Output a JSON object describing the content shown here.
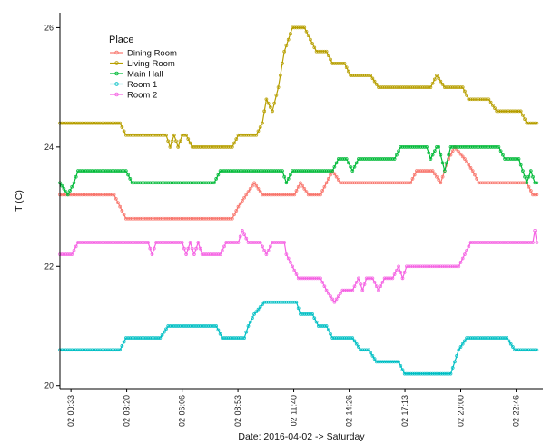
{
  "chart_data": {
    "type": "line",
    "xlabel": "Date: 2016-04-02 -> Saturday",
    "ylabel": "T (C)",
    "ylim": [
      19.95,
      26.25
    ],
    "xlim": [
      0.0,
      24.1
    ],
    "x_ticks": [
      {
        "label": "02 00:33",
        "hour": 0.55
      },
      {
        "label": "02 03:20",
        "hour": 3.333
      },
      {
        "label": "02 06:06",
        "hour": 6.1
      },
      {
        "label": "02 08:53",
        "hour": 8.883
      },
      {
        "label": "02 11:40",
        "hour": 11.667
      },
      {
        "label": "02 14:26",
        "hour": 14.433
      },
      {
        "label": "02 17:13",
        "hour": 17.217
      },
      {
        "label": "02 20:00",
        "hour": 20.0
      },
      {
        "label": "02 22:46",
        "hour": 22.767
      }
    ],
    "y_ticks": [
      20,
      22,
      24,
      26
    ],
    "grid": false,
    "legend": {
      "title": "Place",
      "position": "top-left"
    },
    "series": [
      {
        "name": "Dining Room",
        "color": "#F8766D",
        "points": [
          [
            0.0,
            23.2
          ],
          [
            2.7,
            23.2
          ],
          [
            3.0,
            23.0
          ],
          [
            3.3,
            22.8
          ],
          [
            8.6,
            22.8
          ],
          [
            8.9,
            23.0
          ],
          [
            9.3,
            23.2
          ],
          [
            9.7,
            23.4
          ],
          [
            10.1,
            23.2
          ],
          [
            11.7,
            23.2
          ],
          [
            12.0,
            23.4
          ],
          [
            12.4,
            23.2
          ],
          [
            13.0,
            23.2
          ],
          [
            13.3,
            23.4
          ],
          [
            13.6,
            23.6
          ],
          [
            14.0,
            23.4
          ],
          [
            17.5,
            23.4
          ],
          [
            17.8,
            23.6
          ],
          [
            18.6,
            23.6
          ],
          [
            19.0,
            23.4
          ],
          [
            19.4,
            23.8
          ],
          [
            19.7,
            24.0
          ],
          [
            20.2,
            23.8
          ],
          [
            20.6,
            23.6
          ],
          [
            20.9,
            23.4
          ],
          [
            23.3,
            23.4
          ],
          [
            23.6,
            23.2
          ],
          [
            23.8,
            23.2
          ]
        ]
      },
      {
        "name": "Living Room",
        "color": "#B79F00",
        "points": [
          [
            0.0,
            24.4
          ],
          [
            3.0,
            24.4
          ],
          [
            3.3,
            24.2
          ],
          [
            5.3,
            24.2
          ],
          [
            5.5,
            24.0
          ],
          [
            5.7,
            24.2
          ],
          [
            5.9,
            24.0
          ],
          [
            6.1,
            24.2
          ],
          [
            6.3,
            24.2
          ],
          [
            6.6,
            24.0
          ],
          [
            8.6,
            24.0
          ],
          [
            8.9,
            24.2
          ],
          [
            9.8,
            24.2
          ],
          [
            10.1,
            24.4
          ],
          [
            10.3,
            24.8
          ],
          [
            10.6,
            24.6
          ],
          [
            10.9,
            25.0
          ],
          [
            11.2,
            25.6
          ],
          [
            11.6,
            26.0
          ],
          [
            12.2,
            26.0
          ],
          [
            12.5,
            25.8
          ],
          [
            12.8,
            25.6
          ],
          [
            13.3,
            25.6
          ],
          [
            13.6,
            25.4
          ],
          [
            14.2,
            25.4
          ],
          [
            14.5,
            25.2
          ],
          [
            15.5,
            25.2
          ],
          [
            15.9,
            25.0
          ],
          [
            18.5,
            25.0
          ],
          [
            18.8,
            25.2
          ],
          [
            19.2,
            25.0
          ],
          [
            20.1,
            25.0
          ],
          [
            20.4,
            24.8
          ],
          [
            21.4,
            24.8
          ],
          [
            21.8,
            24.6
          ],
          [
            23.0,
            24.6
          ],
          [
            23.3,
            24.4
          ],
          [
            23.8,
            24.4
          ]
        ]
      },
      {
        "name": "Main Hall",
        "color": "#00BA38",
        "points": [
          [
            0.0,
            23.4
          ],
          [
            0.4,
            23.2
          ],
          [
            0.7,
            23.4
          ],
          [
            0.9,
            23.6
          ],
          [
            3.3,
            23.6
          ],
          [
            3.6,
            23.4
          ],
          [
            7.7,
            23.4
          ],
          [
            8.0,
            23.6
          ],
          [
            11.1,
            23.6
          ],
          [
            11.3,
            23.4
          ],
          [
            11.6,
            23.6
          ],
          [
            13.6,
            23.6
          ],
          [
            13.9,
            23.8
          ],
          [
            14.3,
            23.8
          ],
          [
            14.6,
            23.6
          ],
          [
            14.9,
            23.8
          ],
          [
            16.7,
            23.8
          ],
          [
            17.0,
            24.0
          ],
          [
            18.3,
            24.0
          ],
          [
            18.5,
            23.8
          ],
          [
            18.8,
            24.0
          ],
          [
            18.9,
            24.0
          ],
          [
            19.2,
            23.6
          ],
          [
            19.5,
            24.0
          ],
          [
            21.9,
            24.0
          ],
          [
            22.2,
            23.8
          ],
          [
            22.9,
            23.8
          ],
          [
            23.1,
            23.6
          ],
          [
            23.3,
            23.4
          ],
          [
            23.5,
            23.6
          ],
          [
            23.7,
            23.4
          ],
          [
            23.8,
            23.4
          ]
        ]
      },
      {
        "name": "Room 1",
        "color": "#00BFC4",
        "points": [
          [
            0.0,
            20.6
          ],
          [
            3.0,
            20.6
          ],
          [
            3.3,
            20.8
          ],
          [
            5.0,
            20.8
          ],
          [
            5.4,
            21.0
          ],
          [
            7.8,
            21.0
          ],
          [
            8.1,
            20.8
          ],
          [
            9.2,
            20.8
          ],
          [
            9.4,
            21.0
          ],
          [
            9.7,
            21.2
          ],
          [
            10.2,
            21.4
          ],
          [
            11.8,
            21.4
          ],
          [
            12.0,
            21.2
          ],
          [
            12.6,
            21.2
          ],
          [
            12.9,
            21.0
          ],
          [
            13.3,
            21.0
          ],
          [
            13.6,
            20.8
          ],
          [
            14.6,
            20.8
          ],
          [
            15.0,
            20.6
          ],
          [
            15.4,
            20.6
          ],
          [
            15.8,
            20.4
          ],
          [
            16.9,
            20.4
          ],
          [
            17.2,
            20.2
          ],
          [
            19.5,
            20.2
          ],
          [
            19.9,
            20.6
          ],
          [
            20.3,
            20.8
          ],
          [
            22.3,
            20.8
          ],
          [
            22.7,
            20.6
          ],
          [
            23.8,
            20.6
          ]
        ]
      },
      {
        "name": "Room 2",
        "color": "#F564E3",
        "points": [
          [
            0.0,
            22.2
          ],
          [
            0.6,
            22.2
          ],
          [
            0.9,
            22.4
          ],
          [
            4.4,
            22.4
          ],
          [
            4.6,
            22.2
          ],
          [
            4.8,
            22.4
          ],
          [
            6.1,
            22.4
          ],
          [
            6.3,
            22.2
          ],
          [
            6.5,
            22.4
          ],
          [
            6.7,
            22.2
          ],
          [
            6.9,
            22.4
          ],
          [
            7.1,
            22.2
          ],
          [
            8.0,
            22.2
          ],
          [
            8.3,
            22.4
          ],
          [
            8.9,
            22.4
          ],
          [
            9.1,
            22.6
          ],
          [
            9.4,
            22.4
          ],
          [
            10.0,
            22.4
          ],
          [
            10.3,
            22.2
          ],
          [
            10.6,
            22.4
          ],
          [
            11.2,
            22.4
          ],
          [
            11.3,
            22.2
          ],
          [
            11.6,
            22.0
          ],
          [
            11.9,
            21.8
          ],
          [
            13.0,
            21.8
          ],
          [
            13.3,
            21.6
          ],
          [
            13.7,
            21.4
          ],
          [
            14.1,
            21.6
          ],
          [
            14.6,
            21.6
          ],
          [
            14.9,
            21.8
          ],
          [
            15.1,
            21.6
          ],
          [
            15.3,
            21.8
          ],
          [
            15.6,
            21.8
          ],
          [
            15.9,
            21.6
          ],
          [
            16.2,
            21.8
          ],
          [
            16.6,
            21.8
          ],
          [
            16.9,
            22.0
          ],
          [
            17.1,
            21.8
          ],
          [
            17.3,
            22.0
          ],
          [
            19.9,
            22.0
          ],
          [
            20.2,
            22.2
          ],
          [
            20.5,
            22.4
          ],
          [
            23.6,
            22.4
          ],
          [
            23.7,
            22.6
          ],
          [
            23.8,
            22.4
          ]
        ]
      }
    ]
  }
}
